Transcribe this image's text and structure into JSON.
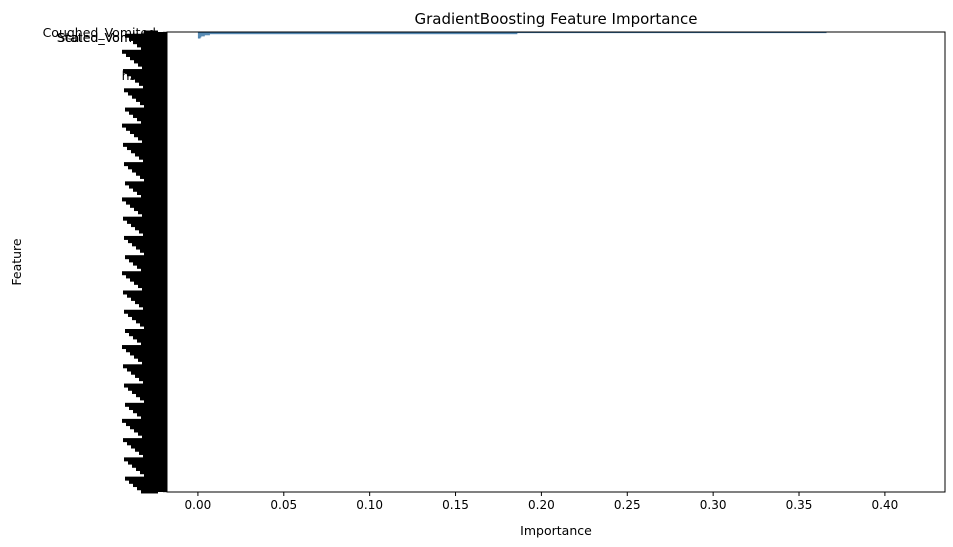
{
  "chart_data": {
    "type": "bar",
    "orientation": "horizontal",
    "title": "GradientBoosting Feature Importance",
    "xlabel": "Importance",
    "ylabel": "Feature",
    "xlim": [
      -0.018,
      0.435
    ],
    "xticks": [
      0.0,
      0.05,
      0.1,
      0.15,
      0.2,
      0.25,
      0.3,
      0.35,
      0.4
    ],
    "xtick_labels": [
      "0.00",
      "0.05",
      "0.10",
      "0.15",
      "0.20",
      "0.25",
      "0.30",
      "0.35",
      "0.40"
    ],
    "bar_color": "#3a76a6",
    "num_features": 430,
    "features": [
      {
        "name": "Coughed_Vomited",
        "value": 0.366
      },
      {
        "name": "Scaled_Vomited",
        "value": 0.186
      },
      {
        "name": "Stated_Vomited",
        "value": 0.007
      },
      {
        "name": "",
        "value": 0.004
      },
      {
        "name": "",
        "value": 0.002
      },
      {
        "name": "hs",
        "value": 0.0015
      }
    ],
    "grid": false,
    "legend": "none"
  }
}
